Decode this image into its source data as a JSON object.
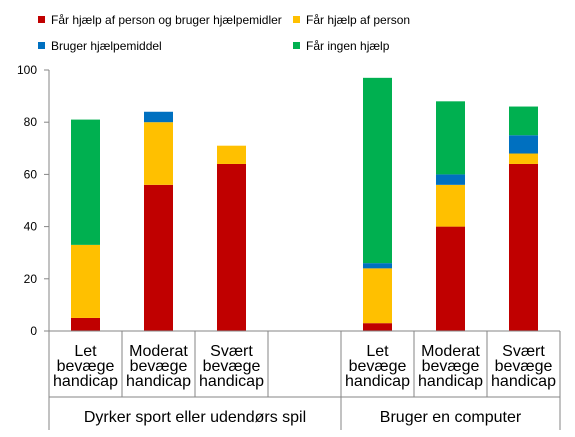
{
  "chart_data": {
    "type": "bar",
    "stacked": true,
    "ylim": [
      0,
      100
    ],
    "yticks": [
      0,
      20,
      40,
      60,
      80,
      100
    ],
    "grid": false,
    "legend_position": "top",
    "categories": [
      {
        "label": "Let bevæge handicap",
        "lines": [
          "Let",
          "bevæge",
          "handicap"
        ],
        "group": 0
      },
      {
        "label": "Moderat bevæge handicap",
        "lines": [
          "Moderat",
          "bevæge",
          "handicap"
        ],
        "group": 0
      },
      {
        "label": "Svært bevæge handicap",
        "lines": [
          "Svært",
          "bevæge",
          "handicap"
        ],
        "group": 0
      },
      {
        "label": "Let bevæge handicap",
        "lines": [
          "Let",
          "bevæge",
          "handicap"
        ],
        "group": 1
      },
      {
        "label": "Moderat bevæge handicap",
        "lines": [
          "Moderat",
          "bevæge",
          "handicap"
        ],
        "group": 1
      },
      {
        "label": "Svært bevæge handicap",
        "lines": [
          "Svært",
          "bevæge",
          "handicap"
        ],
        "group": 1
      }
    ],
    "groups": [
      "Dyrker sport eller udendørs spil",
      "Bruger en computer"
    ],
    "series": [
      {
        "name": "Får hjælp af person og bruger hjælpemidler",
        "color": "#C00000",
        "values": [
          5,
          56,
          64,
          3,
          40,
          64
        ]
      },
      {
        "name": "Får hjælp af person",
        "color": "#FFC000",
        "values": [
          28,
          24,
          7,
          21,
          16,
          4
        ]
      },
      {
        "name": "Bruger hjælpemiddel",
        "color": "#0070C0",
        "values": [
          0,
          4,
          0,
          2,
          4,
          7
        ]
      },
      {
        "name": "Får ingen hjælp",
        "color": "#00B050",
        "values": [
          48,
          0,
          0,
          71,
          28,
          11
        ]
      }
    ]
  }
}
